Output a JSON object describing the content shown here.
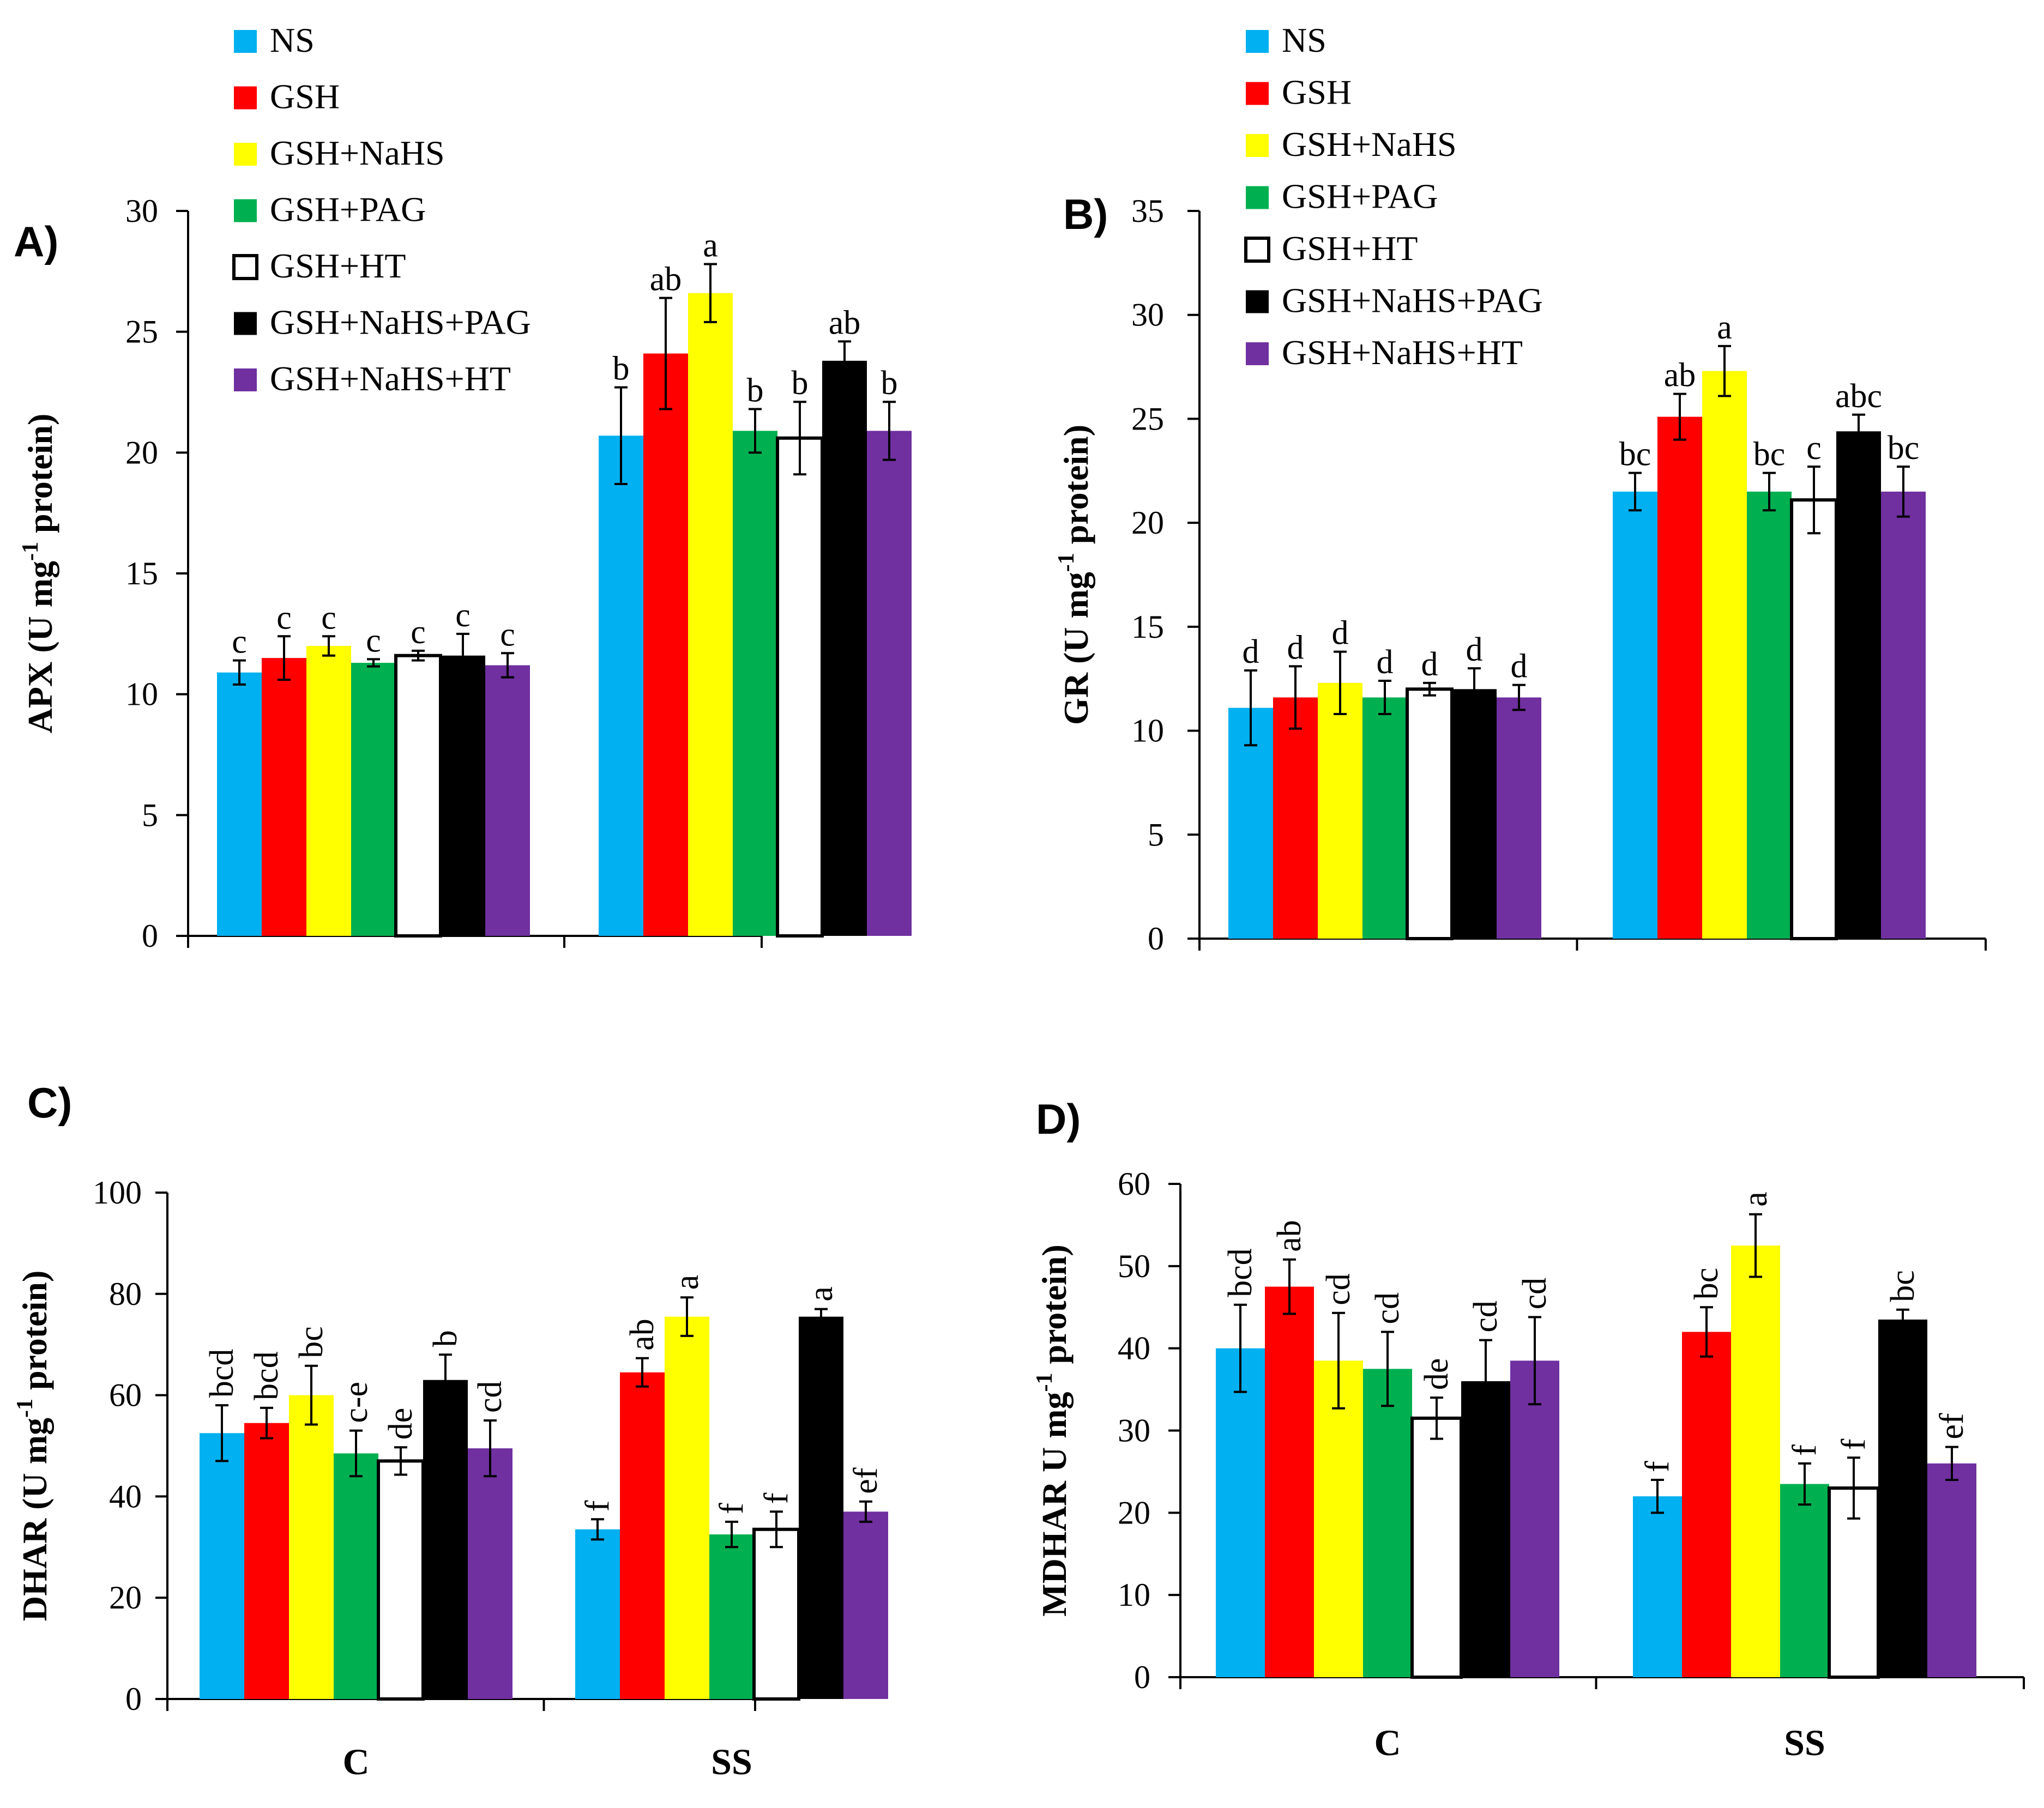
{
  "figure": {
    "series_names": [
      "NS",
      "GSH",
      "GSH+NaHS",
      "GSH+PAG",
      "GSH+HT",
      "GSH+NaHS+PAG",
      "GSH+NaHS+HT"
    ],
    "series_colors": [
      "#00b0f0",
      "#ff0000",
      "#ffff00",
      "#00b050",
      "#ffffff",
      "#000000",
      "#7030a0"
    ],
    "categories": [
      "C",
      "SS"
    ]
  },
  "chart_data": [
    {
      "panel": "A)",
      "type": "bar",
      "ylabel": "APX (U mg-1 protein)",
      "ylabel_parts": {
        "pre": "APX (U mg",
        "sup": "-1",
        "post": " protein)"
      },
      "ylim": [
        0,
        30
      ],
      "yticks": [
        0,
        5,
        10,
        15,
        20,
        25,
        30
      ],
      "categories": [
        "C",
        "SS"
      ],
      "show_category_labels": false,
      "series": [
        {
          "name": "NS",
          "values": [
            10.9,
            20.7
          ],
          "errors": [
            0.5,
            2.0
          ],
          "letters": [
            "c",
            "b"
          ]
        },
        {
          "name": "GSH",
          "values": [
            11.5,
            24.1
          ],
          "errors": [
            0.9,
            2.3
          ],
          "letters": [
            "c",
            "ab"
          ]
        },
        {
          "name": "GSH+NaHS",
          "values": [
            12.0,
            26.6
          ],
          "errors": [
            0.4,
            1.2
          ],
          "letters": [
            "c",
            "a"
          ]
        },
        {
          "name": "GSH+PAG",
          "values": [
            11.3,
            20.9
          ],
          "errors": [
            0.15,
            0.9
          ],
          "letters": [
            "c",
            "b"
          ]
        },
        {
          "name": "GSH+HT",
          "values": [
            11.6,
            20.6
          ],
          "errors": [
            0.2,
            1.5
          ],
          "letters": [
            "c",
            "b"
          ]
        },
        {
          "name": "GSH+NaHS+PAG",
          "values": [
            11.6,
            23.8
          ],
          "errors": [
            0.9,
            0.8
          ],
          "letters": [
            "c",
            "ab"
          ]
        },
        {
          "name": "GSH+NaHS+HT",
          "values": [
            11.2,
            20.9
          ],
          "errors": [
            0.5,
            1.2
          ],
          "letters": [
            "c",
            "b"
          ]
        }
      ]
    },
    {
      "panel": "B)",
      "type": "bar",
      "ylabel": "GR (U mg-1 protein)",
      "ylabel_parts": {
        "pre": "GR (U mg",
        "sup": "-1",
        "post": " protein)"
      },
      "ylim": [
        0,
        35
      ],
      "yticks": [
        0,
        5,
        10,
        15,
        20,
        25,
        30,
        35
      ],
      "categories": [
        "C",
        "SS"
      ],
      "show_category_labels": false,
      "series": [
        {
          "name": "NS",
          "values": [
            11.1,
            21.5
          ],
          "errors": [
            1.8,
            0.9
          ],
          "letters": [
            "d",
            "bc"
          ]
        },
        {
          "name": "GSH",
          "values": [
            11.6,
            25.1
          ],
          "errors": [
            1.5,
            1.1
          ],
          "letters": [
            "d",
            "ab"
          ]
        },
        {
          "name": "GSH+NaHS",
          "values": [
            12.3,
            27.3
          ],
          "errors": [
            1.5,
            1.2
          ],
          "letters": [
            "d",
            "a"
          ]
        },
        {
          "name": "GSH+PAG",
          "values": [
            11.6,
            21.5
          ],
          "errors": [
            0.8,
            0.9
          ],
          "letters": [
            "d",
            "bc"
          ]
        },
        {
          "name": "GSH+HT",
          "values": [
            12.0,
            21.1
          ],
          "errors": [
            0.3,
            1.6
          ],
          "letters": [
            "d",
            "c"
          ]
        },
        {
          "name": "GSH+NaHS+PAG",
          "values": [
            12.0,
            24.4
          ],
          "errors": [
            1.0,
            0.8
          ],
          "letters": [
            "d",
            "abc"
          ]
        },
        {
          "name": "GSH+NaHS+HT",
          "values": [
            11.6,
            21.5
          ],
          "errors": [
            0.6,
            1.2
          ],
          "letters": [
            "d",
            "bc"
          ]
        }
      ]
    },
    {
      "panel": "C)",
      "type": "bar",
      "ylabel": "DHAR (U mg-1 protein)",
      "ylabel_parts": {
        "pre": "DHAR (U mg",
        "sup": "-1",
        "post": " protein)"
      },
      "ylim": [
        0,
        100
      ],
      "yticks": [
        0,
        20,
        40,
        60,
        80,
        100
      ],
      "categories": [
        "C",
        "SS"
      ],
      "show_category_labels": true,
      "series": [
        {
          "name": "NS",
          "values": [
            52.5,
            33.5
          ],
          "errors": [
            5.5,
            2.0
          ],
          "letters": [
            "bcd",
            "f"
          ]
        },
        {
          "name": "GSH",
          "values": [
            54.5,
            64.5
          ],
          "errors": [
            3.0,
            2.8
          ],
          "letters": [
            "bcd",
            "ab"
          ]
        },
        {
          "name": "GSH+NaHS",
          "values": [
            60.0,
            75.5
          ],
          "errors": [
            5.8,
            3.8
          ],
          "letters": [
            "bc",
            "a"
          ]
        },
        {
          "name": "GSH+PAG",
          "values": [
            48.5,
            32.5
          ],
          "errors": [
            4.5,
            2.5
          ],
          "letters": [
            "c-e",
            "f"
          ]
        },
        {
          "name": "GSH+HT",
          "values": [
            47.0,
            33.5
          ],
          "errors": [
            2.7,
            3.5
          ],
          "letters": [
            "de",
            "f"
          ]
        },
        {
          "name": "GSH+NaHS+PAG",
          "values": [
            63.0,
            75.5
          ],
          "errors": [
            5.0,
            1.5
          ],
          "letters": [
            "b",
            "a"
          ]
        },
        {
          "name": "GSH+NaHS+HT",
          "values": [
            49.5,
            37.0
          ],
          "errors": [
            5.5,
            2.0
          ],
          "letters": [
            "cd",
            "ef"
          ]
        }
      ]
    },
    {
      "panel": "D)",
      "type": "bar",
      "ylabel": "MDHAR U mg-1 protein)",
      "ylabel_parts": {
        "pre": "MDHAR U mg",
        "sup": "-1",
        "post": " protein)"
      },
      "ylim": [
        0,
        60
      ],
      "yticks": [
        0,
        10,
        20,
        30,
        40,
        50,
        60
      ],
      "categories": [
        "C",
        "SS"
      ],
      "show_category_labels": true,
      "series": [
        {
          "name": "NS",
          "values": [
            40.0,
            22.0
          ],
          "errors": [
            5.3,
            2.0
          ],
          "letters": [
            "bcd",
            "f"
          ]
        },
        {
          "name": "GSH",
          "values": [
            47.5,
            42.0
          ],
          "errors": [
            3.3,
            3.0
          ],
          "letters": [
            "ab",
            "bc"
          ]
        },
        {
          "name": "GSH+NaHS",
          "values": [
            38.5,
            52.5
          ],
          "errors": [
            5.8,
            3.8
          ],
          "letters": [
            "cd",
            "a"
          ]
        },
        {
          "name": "GSH+PAG",
          "values": [
            37.5,
            23.5
          ],
          "errors": [
            4.5,
            2.5
          ],
          "letters": [
            "cd",
            "f"
          ]
        },
        {
          "name": "GSH+HT",
          "values": [
            31.5,
            23.0
          ],
          "errors": [
            2.5,
            3.7
          ],
          "letters": [
            "de",
            "f"
          ]
        },
        {
          "name": "GSH+NaHS+PAG",
          "values": [
            36.0,
            43.5
          ],
          "errors": [
            5.0,
            1.2
          ],
          "letters": [
            "cd",
            "bc"
          ]
        },
        {
          "name": "GSH+NaHS+HT",
          "values": [
            38.5,
            26.0
          ],
          "errors": [
            5.3,
            2.0
          ],
          "letters": [
            "cd",
            "ef"
          ]
        }
      ]
    }
  ]
}
